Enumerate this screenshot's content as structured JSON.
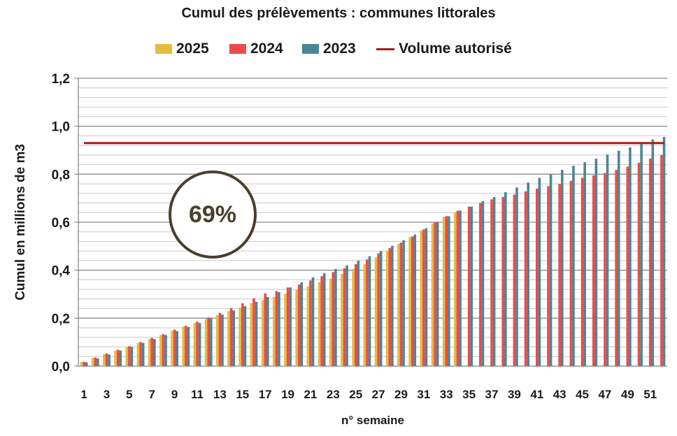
{
  "chart_data": {
    "type": "bar",
    "title": "Cumul des prélèvements : communes littorales",
    "xlabel": "n° semaine",
    "ylabel": "Cumul en millions de m3",
    "ylim": [
      0,
      1.2
    ],
    "yticks": [
      "0,0",
      "0,2",
      "0,4",
      "0,6",
      "0,8",
      "1,0",
      "1,2"
    ],
    "xticklabels": [
      "1",
      "3",
      "5",
      "7",
      "9",
      "11",
      "13",
      "15",
      "17",
      "19",
      "21",
      "23",
      "25",
      "27",
      "29",
      "31",
      "33",
      "35",
      "37",
      "39",
      "41",
      "43",
      "45",
      "47",
      "49",
      "51"
    ],
    "grid": true,
    "legend_position": "top",
    "series": [
      {
        "name": "2025",
        "color": "#e5bc3f",
        "values": [
          0.017,
          0.034,
          0.05,
          0.065,
          0.08,
          0.097,
          0.113,
          0.13,
          0.148,
          0.165,
          0.18,
          0.197,
          0.213,
          0.23,
          0.245,
          0.262,
          0.275,
          0.288,
          0.302,
          0.318,
          0.333,
          0.35,
          0.365,
          0.385,
          0.405,
          0.425,
          0.453,
          0.48,
          0.51,
          0.538,
          0.566,
          0.595,
          0.622,
          0.64
        ]
      },
      {
        "name": "2024",
        "color": "#ee4a4a",
        "values": [
          0.018,
          0.036,
          0.053,
          0.068,
          0.083,
          0.1,
          0.117,
          0.133,
          0.152,
          0.168,
          0.185,
          0.203,
          0.222,
          0.242,
          0.262,
          0.283,
          0.303,
          0.313,
          0.328,
          0.34,
          0.357,
          0.375,
          0.392,
          0.408,
          0.425,
          0.445,
          0.47,
          0.492,
          0.515,
          0.54,
          0.57,
          0.6,
          0.625,
          0.648,
          0.665,
          0.68,
          0.695,
          0.705,
          0.715,
          0.728,
          0.74,
          0.75,
          0.76,
          0.772,
          0.785,
          0.795,
          0.805,
          0.818,
          0.832,
          0.848,
          0.865,
          0.88
        ]
      },
      {
        "name": "2023",
        "color": "#4a8696",
        "values": [
          0.016,
          0.032,
          0.048,
          0.065,
          0.08,
          0.097,
          0.113,
          0.13,
          0.146,
          0.163,
          0.18,
          0.198,
          0.215,
          0.232,
          0.25,
          0.268,
          0.288,
          0.308,
          0.328,
          0.35,
          0.37,
          0.388,
          0.405,
          0.42,
          0.44,
          0.458,
          0.48,
          0.502,
          0.525,
          0.548,
          0.575,
          0.6,
          0.625,
          0.648,
          0.665,
          0.688,
          0.705,
          0.725,
          0.745,
          0.765,
          0.785,
          0.8,
          0.818,
          0.835,
          0.85,
          0.865,
          0.882,
          0.898,
          0.912,
          0.93,
          0.945,
          0.955
        ]
      }
    ],
    "reference_line": {
      "name": "Volume autorisé",
      "value": 0.93,
      "color": "#a51c1c"
    },
    "annotation": {
      "text": "69%",
      "color": "#4a3f2d"
    }
  }
}
